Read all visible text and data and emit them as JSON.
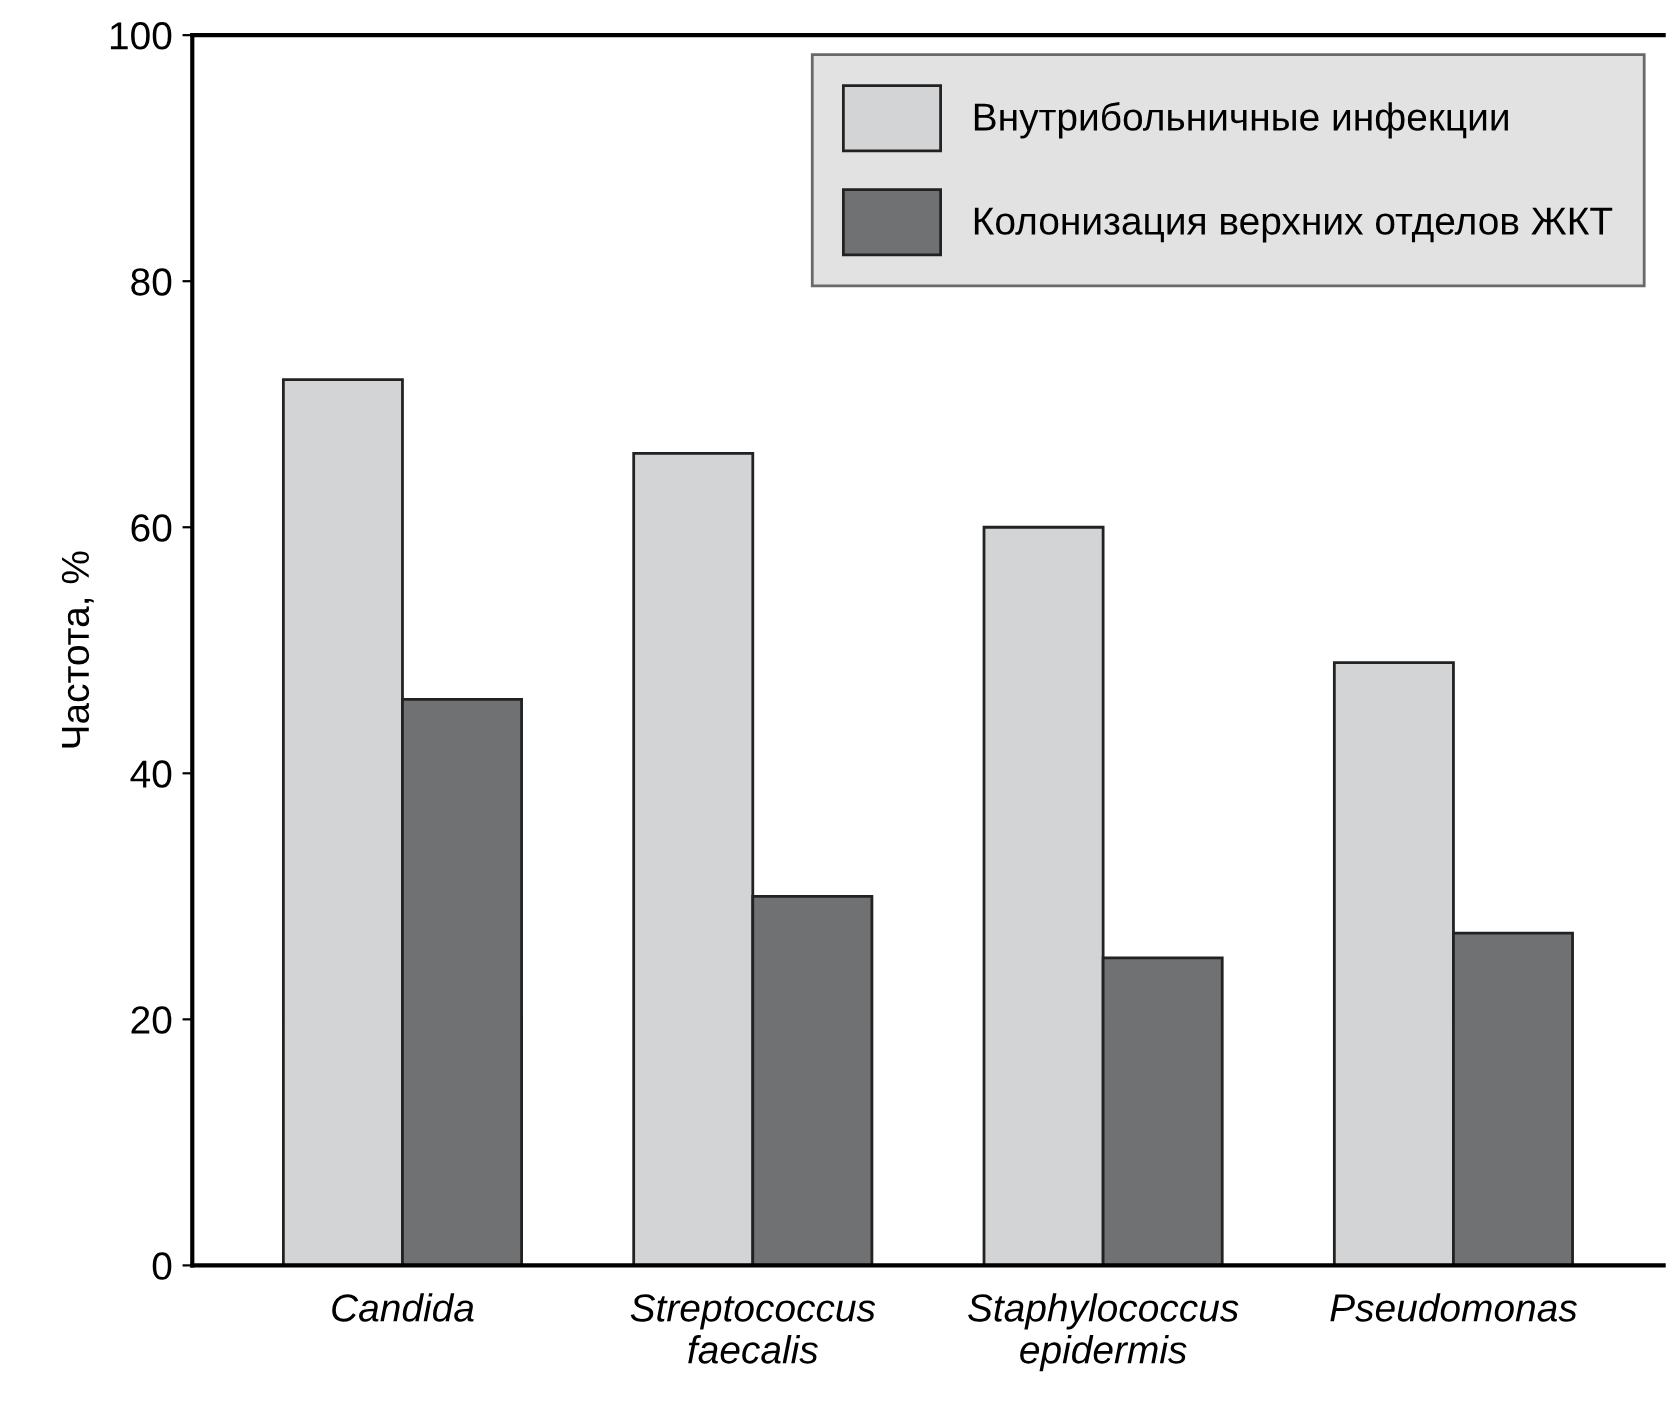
{
  "chart_data": {
    "type": "bar",
    "ylabel": "Частота, %",
    "categories": [
      "Candida",
      "Streptococcus\nfaecalis",
      "Staphylococcus\nepidermis",
      "Pseudomonas"
    ],
    "series": [
      {
        "name": "Внутрибольничные инфекции",
        "color": "#d2d4d6",
        "values": [
          72,
          66,
          60,
          49
        ]
      },
      {
        "name": "Колонизация верхних отделов ЖКТ",
        "color": "#6f7172",
        "values": [
          46,
          30,
          25,
          27
        ]
      }
    ],
    "ylim": [
      0,
      100
    ],
    "yticks": [
      0,
      20,
      40,
      60,
      80,
      100
    ],
    "grid": false,
    "legend": "top right"
  }
}
